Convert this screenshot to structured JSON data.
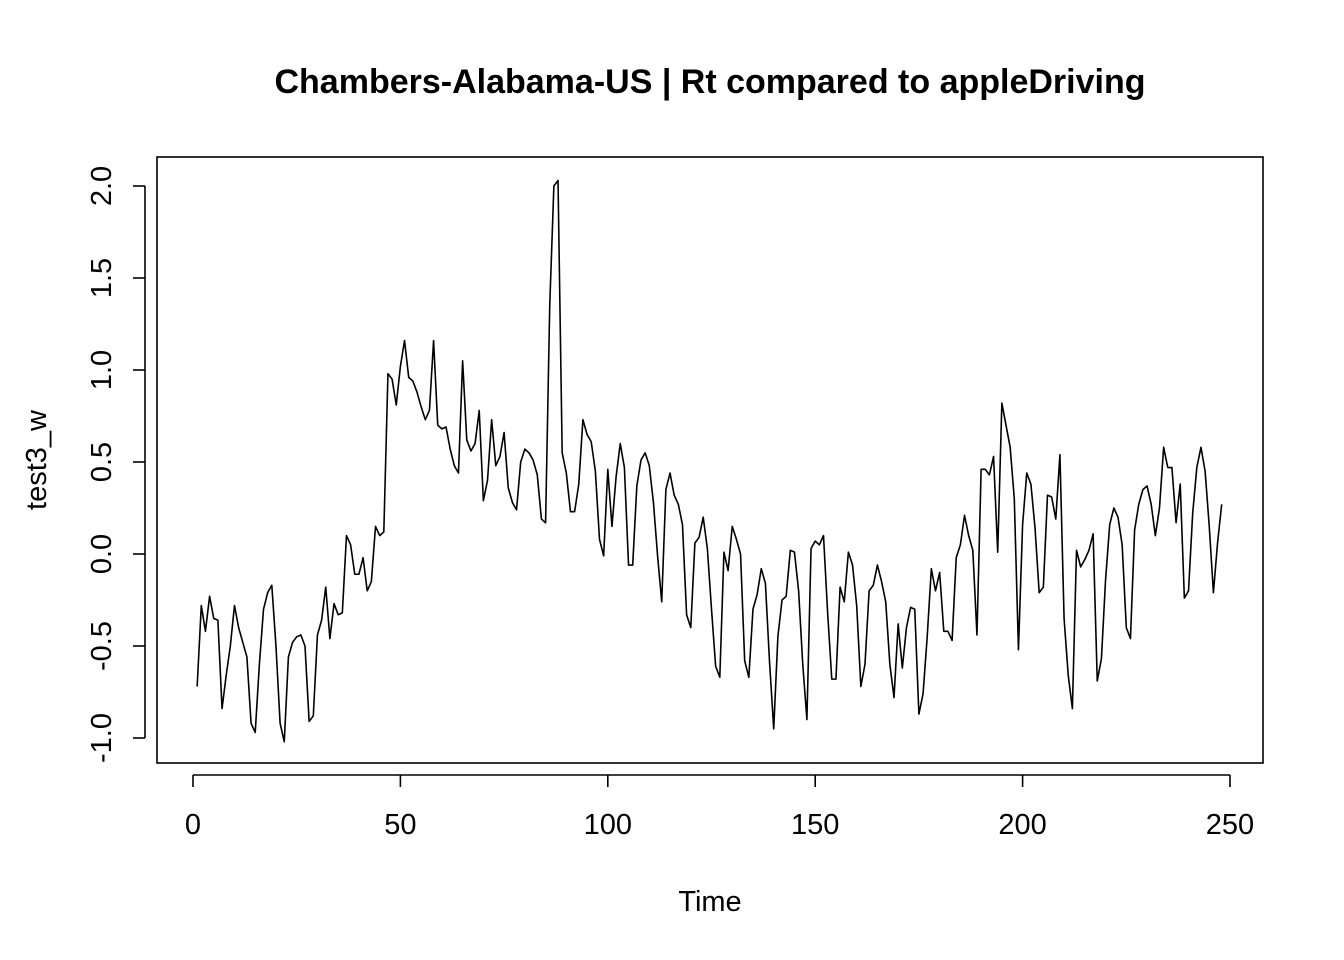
{
  "chart_data": {
    "type": "line",
    "title": "Chambers-Alabama-US | Rt compared to appleDriving",
    "xlabel": "Time",
    "ylabel": "test3_w",
    "xlim": [
      1,
      248
    ],
    "ylim": [
      -1.0,
      2.0
    ],
    "xticks": [
      0,
      50,
      100,
      150,
      200,
      250
    ],
    "yticks": [
      -1.0,
      -0.5,
      0.0,
      0.5,
      1.0,
      1.5,
      2.0
    ],
    "xtick_labels": [
      "0",
      "50",
      "100",
      "150",
      "200",
      "250"
    ],
    "ytick_labels": [
      "-1.0",
      "-0.5",
      "0.0",
      "0.5",
      "1.0",
      "1.5",
      "2.0"
    ],
    "grid": false,
    "legend": "none",
    "line_color": "#000000",
    "series": [
      {
        "values": [
          -0.72,
          -0.28,
          -0.42,
          -0.23,
          -0.35,
          -0.36,
          -0.84,
          -0.66,
          -0.5,
          -0.28,
          -0.4,
          -0.48,
          -0.56,
          -0.92,
          -0.97,
          -0.6,
          -0.3,
          -0.21,
          -0.17,
          -0.5,
          -0.92,
          -1.02,
          -0.56,
          -0.48,
          -0.45,
          -0.44,
          -0.5,
          -0.91,
          -0.88,
          -0.44,
          -0.36,
          -0.18,
          -0.46,
          -0.27,
          -0.33,
          -0.32,
          0.1,
          0.05,
          -0.11,
          -0.11,
          -0.02,
          -0.2,
          -0.15,
          0.15,
          0.1,
          0.12,
          0.98,
          0.95,
          0.81,
          1.02,
          1.16,
          0.96,
          0.94,
          0.88,
          0.8,
          0.73,
          0.78,
          1.16,
          0.7,
          0.68,
          0.69,
          0.57,
          0.48,
          0.44,
          1.05,
          0.62,
          0.56,
          0.6,
          0.78,
          0.29,
          0.4,
          0.73,
          0.48,
          0.53,
          0.66,
          0.36,
          0.28,
          0.24,
          0.5,
          0.57,
          0.55,
          0.51,
          0.43,
          0.19,
          0.17,
          1.35,
          2.0,
          2.03,
          0.55,
          0.44,
          0.23,
          0.23,
          0.38,
          0.73,
          0.65,
          0.61,
          0.45,
          0.08,
          -0.01,
          0.46,
          0.15,
          0.42,
          0.6,
          0.47,
          -0.06,
          -0.06,
          0.37,
          0.51,
          0.55,
          0.48,
          0.28,
          -0.01,
          -0.26,
          0.35,
          0.44,
          0.32,
          0.27,
          0.16,
          -0.33,
          -0.4,
          0.06,
          0.09,
          0.2,
          0.03,
          -0.3,
          -0.61,
          -0.67,
          0.01,
          -0.09,
          0.15,
          0.08,
          0.0,
          -0.58,
          -0.67,
          -0.3,
          -0.22,
          -0.08,
          -0.16,
          -0.59,
          -0.95,
          -0.45,
          -0.25,
          -0.23,
          0.02,
          0.01,
          -0.2,
          -0.6,
          -0.9,
          0.03,
          0.07,
          0.05,
          0.1,
          -0.32,
          -0.68,
          -0.68,
          -0.18,
          -0.26,
          0.01,
          -0.06,
          -0.28,
          -0.72,
          -0.6,
          -0.2,
          -0.17,
          -0.06,
          -0.15,
          -0.26,
          -0.6,
          -0.78,
          -0.38,
          -0.62,
          -0.4,
          -0.29,
          -0.3,
          -0.87,
          -0.76,
          -0.45,
          -0.08,
          -0.2,
          -0.1,
          -0.42,
          -0.42,
          -0.47,
          -0.02,
          0.05,
          0.21,
          0.1,
          0.02,
          -0.44,
          0.46,
          0.46,
          0.43,
          0.53,
          0.01,
          0.82,
          0.7,
          0.58,
          0.3,
          -0.52,
          0.16,
          0.44,
          0.38,
          0.14,
          -0.21,
          -0.18,
          0.32,
          0.31,
          0.19,
          0.54,
          -0.35,
          -0.66,
          -0.84,
          0.02,
          -0.07,
          -0.03,
          0.02,
          0.11,
          -0.69,
          -0.57,
          -0.14,
          0.16,
          0.25,
          0.2,
          0.05,
          -0.4,
          -0.46,
          0.13,
          0.27,
          0.35,
          0.37,
          0.27,
          0.1,
          0.25,
          0.58,
          0.47,
          0.47,
          0.17,
          0.38,
          -0.24,
          -0.2,
          0.22,
          0.47,
          0.58,
          0.45,
          0.15,
          -0.21,
          0.06,
          0.27
        ]
      }
    ]
  }
}
